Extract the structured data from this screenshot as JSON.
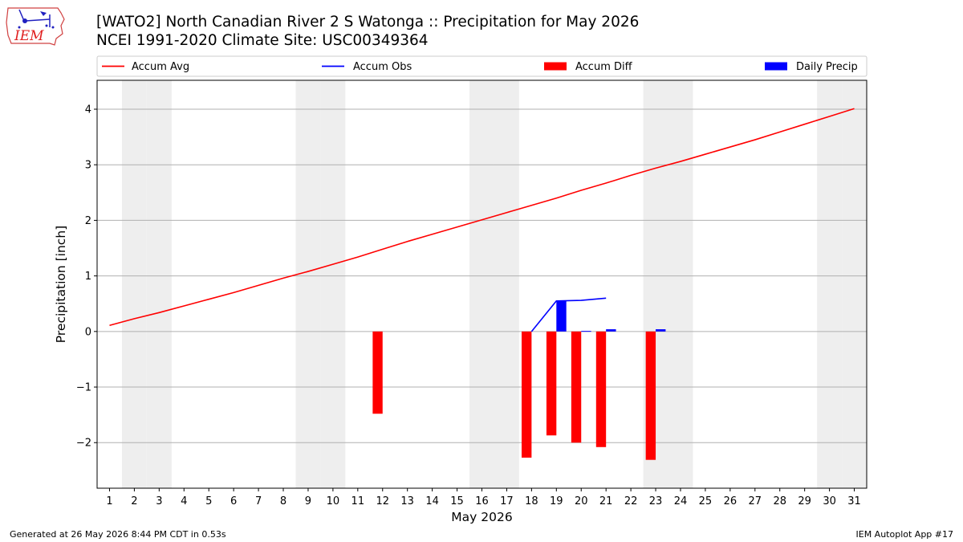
{
  "logo": {
    "text": "IEM"
  },
  "title": "[WATO2] North Canadian River 2 S Watonga :: Precipitation for May 2026",
  "subtitle": "NCEI 1991-2020 Climate Site: USC00349364",
  "footer": {
    "left": "Generated at 26 May 2026 8:44 PM CDT in 0.53s",
    "right": "IEM Autoplot App #17"
  },
  "colors": {
    "avg": "#ff0000",
    "obs": "#0000ff",
    "diff": "#ff0000",
    "daily": "#0000ff",
    "weekend": "#eeeeee",
    "grid": "#b0b0b0"
  },
  "chart_data": {
    "type": "bar",
    "xlabel": "May 2026",
    "ylabel": "Precipitation [inch]",
    "xlim": [
      0.5,
      31.5
    ],
    "ylim": [
      -2.82,
      4.52
    ],
    "yticks": [
      -2,
      -1,
      0,
      1,
      2,
      3,
      4
    ],
    "xticks": [
      1,
      2,
      3,
      4,
      5,
      6,
      7,
      8,
      9,
      10,
      11,
      12,
      13,
      14,
      15,
      16,
      17,
      18,
      19,
      20,
      21,
      22,
      23,
      24,
      25,
      26,
      27,
      28,
      29,
      30,
      31
    ],
    "grid": "y",
    "legend_placement": "top, outside plot",
    "weekend_days": [
      2,
      3,
      9,
      10,
      16,
      17,
      23,
      24,
      30,
      31
    ],
    "legend": [
      {
        "label": "Accum Avg",
        "kind": "line",
        "color": "#ff0000"
      },
      {
        "label": "Accum Obs",
        "kind": "line",
        "color": "#0000ff"
      },
      {
        "label": "Accum Diff",
        "kind": "bar",
        "color": "#ff0000"
      },
      {
        "label": "Daily Precip",
        "kind": "bar",
        "color": "#0000ff"
      }
    ],
    "series": [
      {
        "name": "Accum Avg",
        "type": "line",
        "x": [
          1,
          2,
          3,
          4,
          5,
          6,
          7,
          8,
          9,
          10,
          11,
          12,
          13,
          14,
          15,
          16,
          17,
          18,
          19,
          20,
          21,
          22,
          23,
          24,
          25,
          26,
          27,
          28,
          29,
          30,
          31
        ],
        "values": [
          0.11,
          0.23,
          0.34,
          0.46,
          0.58,
          0.7,
          0.83,
          0.96,
          1.08,
          1.21,
          1.34,
          1.48,
          1.62,
          1.75,
          1.88,
          2.01,
          2.14,
          2.27,
          2.4,
          2.54,
          2.67,
          2.81,
          2.94,
          3.06,
          3.19,
          3.32,
          3.45,
          3.59,
          3.73,
          3.87,
          4.01
        ]
      },
      {
        "name": "Accum Obs",
        "type": "line",
        "x": [
          18,
          19,
          20,
          21
        ],
        "values": [
          0.0,
          0.55,
          0.56,
          0.6
        ]
      },
      {
        "name": "Accum Diff",
        "type": "bar",
        "x": [
          12,
          18,
          19,
          20,
          21,
          23
        ],
        "values": [
          -1.48,
          -2.27,
          -1.87,
          -2.0,
          -2.08,
          -2.31
        ]
      },
      {
        "name": "Daily Precip",
        "type": "bar",
        "x": [
          19,
          20,
          21,
          23
        ],
        "values": [
          0.55,
          0.01,
          0.04,
          0.04
        ]
      }
    ]
  }
}
